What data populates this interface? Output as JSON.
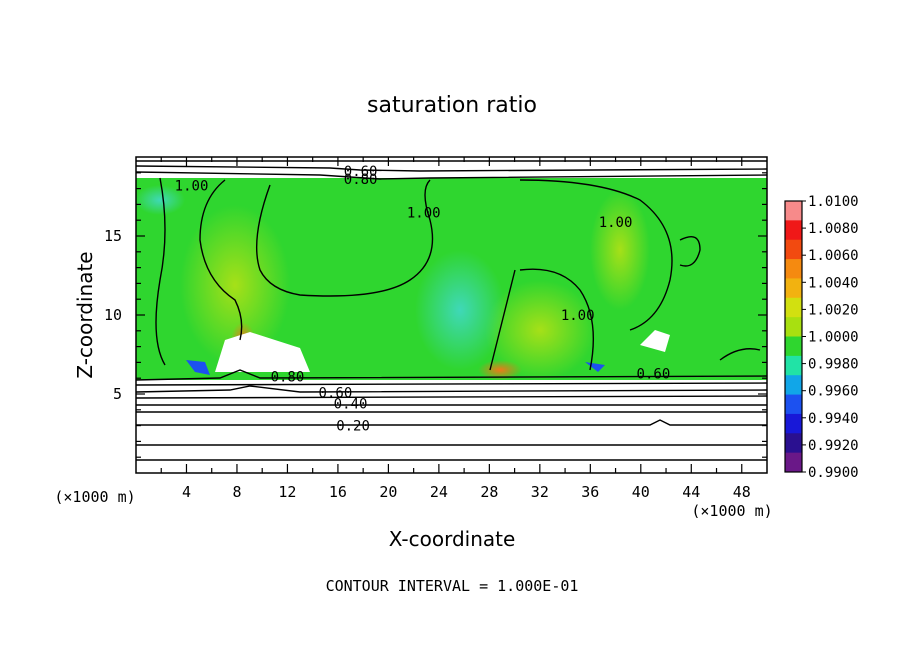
{
  "chart_data": {
    "type": "heatmap",
    "title": "saturation ratio",
    "xlabel": "X-coordinate",
    "ylabel": "Z-coordinate",
    "x_unit": "(×1000 m)",
    "z_unit": "(×1000 m)",
    "xlim": [
      0,
      50
    ],
    "ylim": [
      0,
      20
    ],
    "x_ticks": [
      "4",
      "8",
      "12",
      "16",
      "20",
      "24",
      "28",
      "32",
      "36",
      "40",
      "44",
      "48"
    ],
    "y_ticks": [
      "5",
      "10",
      "15"
    ],
    "footnote": "CONTOUR INTERVAL = 1.000E-01",
    "colorbar": {
      "labels": [
        "1.0100",
        "1.0080",
        "1.0060",
        "1.0040",
        "1.0020",
        "1.0000",
        "0.9980",
        "0.9960",
        "0.9940",
        "0.9920",
        "0.9900"
      ],
      "colors": [
        "#f78a8a",
        "#f01818",
        "#f24a10",
        "#f58a10",
        "#f2b210",
        "#d2e010",
        "#a8e010",
        "#2fd62f",
        "#21e3a6",
        "#11a6e8",
        "#1c51f0",
        "#1818d8",
        "#2a1090",
        "#6a1888"
      ]
    },
    "contour_labels": [
      {
        "text": "1.00",
        "x": 4.4,
        "z": 18.2
      },
      {
        "text": "1.00",
        "x": 22.8,
        "z": 16.5
      },
      {
        "text": "1.00",
        "x": 38.0,
        "z": 15.9
      },
      {
        "text": "1.00",
        "x": 35.0,
        "z": 10.0
      },
      {
        "text": "0.60",
        "x": 17.8,
        "z": 19.1
      },
      {
        "text": "0.80",
        "x": 17.8,
        "z": 18.6
      },
      {
        "text": "0.80",
        "x": 12.0,
        "z": 6.1
      },
      {
        "text": "0.60",
        "x": 15.8,
        "z": 5.1
      },
      {
        "text": "0.40",
        "x": 17.0,
        "z": 4.4
      },
      {
        "text": "0.20",
        "x": 17.2,
        "z": 3.0
      },
      {
        "text": "0.60",
        "x": 41.0,
        "z": 6.3
      }
    ]
  }
}
